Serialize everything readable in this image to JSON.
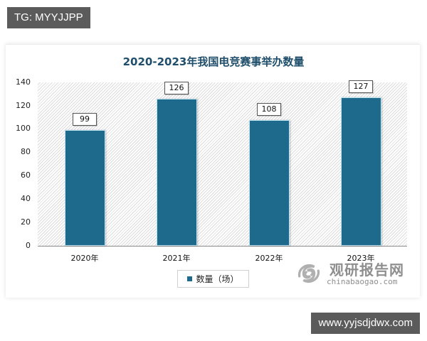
{
  "tags": {
    "top": "TG: MYYJJPP",
    "bottom": "www.yyjsdjdwx.com"
  },
  "colors": {
    "bar": "#1e6a8d",
    "title": "#1f4e6b",
    "tag_bg": "#5b5b5b"
  },
  "watermark": {
    "cn": "观研报告网",
    "en": "chinabaogao.com"
  },
  "chart_data": {
    "type": "bar",
    "title": "2020-2023年我国电竞赛事举办数量",
    "categories": [
      "2020年",
      "2021年",
      "2022年",
      "2023年"
    ],
    "series": [
      {
        "name": "数量（场）",
        "values": [
          99,
          126,
          108,
          127
        ]
      }
    ],
    "values": [
      99,
      126,
      108,
      127
    ],
    "data_labels": [
      "99",
      "126",
      "108",
      "127"
    ],
    "xlabel": "",
    "ylabel": "",
    "ylim": [
      0,
      140
    ],
    "yticks": [
      "0",
      "20",
      "40",
      "60",
      "80",
      "100",
      "120",
      "140"
    ],
    "grid": false,
    "legend_position": "bottom",
    "legend": [
      "数量（场）"
    ]
  }
}
